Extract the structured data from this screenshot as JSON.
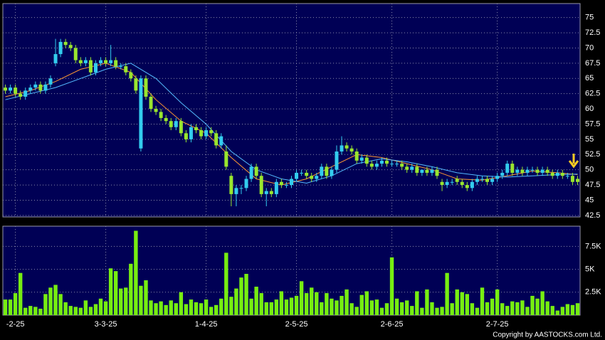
{
  "chart_data": [
    {
      "type": "candlestick",
      "xlim": [
        -0.5,
        114.5
      ],
      "ylim": [
        42.25,
        77.3
      ],
      "yticks": [
        42.5,
        45,
        47.5,
        50,
        52.5,
        55,
        57.5,
        60,
        62.5,
        65,
        67.5,
        70,
        72.5,
        75
      ],
      "grid": true,
      "up_color": "#33ccee",
      "down_color": "#99e62e",
      "open": [
        63.5,
        63,
        63.5,
        62.5,
        62,
        63,
        63.5,
        64,
        63,
        64,
        67.5,
        69,
        71,
        70.5,
        70,
        68,
        67.5,
        68,
        66,
        67.5,
        68,
        67.5,
        68,
        67,
        67,
        66,
        65,
        53.5,
        65,
        62,
        60,
        59.5,
        58.5,
        58,
        57,
        58,
        56,
        55,
        57,
        56.5,
        55.5,
        56.5,
        56,
        54,
        53,
        49,
        46,
        47,
        47,
        48.5,
        50.5,
        49,
        46,
        46.5,
        46,
        48,
        47.5,
        47.5,
        48.5,
        49.5,
        49.5,
        49,
        48.5,
        49,
        50.5,
        49,
        50,
        53,
        54,
        53.5,
        53,
        51.5,
        52,
        51,
        50.5,
        51,
        51.5,
        51,
        51,
        51,
        50.5,
        50,
        50.5,
        49.5,
        50,
        49.5,
        50,
        48,
        47.5,
        48,
        48.5,
        48,
        47.5,
        47,
        48,
        48.5,
        48.5,
        48,
        48.5,
        49,
        49.5,
        51,
        49.5,
        50,
        49.5,
        50,
        50,
        49.5,
        50,
        49.5,
        49,
        49.5,
        49,
        49,
        48.5
      ],
      "high": [
        64,
        64,
        64,
        63,
        63.5,
        64,
        64.5,
        64.5,
        64.5,
        65.5,
        71.5,
        71.5,
        71.5,
        71,
        70.5,
        68.5,
        68.5,
        68.5,
        68,
        68.5,
        68.5,
        70.5,
        68.5,
        67.5,
        67.5,
        66.5,
        65.5,
        65.5,
        65.5,
        62.5,
        60.5,
        60,
        59,
        58.5,
        58.5,
        58.5,
        56.5,
        57.5,
        57.5,
        57,
        57,
        57,
        56.5,
        56,
        54,
        49.5,
        47.5,
        47.5,
        49,
        51,
        51,
        49.5,
        47,
        47,
        48.5,
        48.5,
        48,
        49,
        50,
        50,
        50,
        49.5,
        49.5,
        51,
        51,
        50.5,
        54,
        55.5,
        54.5,
        54,
        53.5,
        52.5,
        52.5,
        51.5,
        51.5,
        52,
        52,
        51.5,
        51.5,
        51.5,
        51,
        51,
        51,
        50,
        50.5,
        50.5,
        50.5,
        48.5,
        48.5,
        48.5,
        49,
        48.5,
        48,
        48.5,
        49,
        49,
        49,
        49,
        49.5,
        50,
        51.5,
        51.5,
        50.5,
        50.5,
        50.5,
        50.5,
        50.5,
        50.5,
        50.5,
        50,
        50,
        50,
        49.5,
        49.5,
        49
      ],
      "low": [
        62.5,
        62.5,
        62,
        61.5,
        61.5,
        62.5,
        63,
        62.5,
        62.5,
        63.5,
        67,
        68.5,
        70,
        69.5,
        67.5,
        67,
        67,
        65.5,
        65.5,
        67,
        67,
        67,
        66.5,
        66.5,
        65.5,
        64.5,
        62.5,
        53,
        61.5,
        59.5,
        59,
        58,
        57.5,
        56.5,
        56.5,
        55.5,
        54.5,
        54.5,
        56,
        55,
        55,
        55.5,
        53.5,
        53.5,
        50,
        44,
        44,
        46,
        46.5,
        48,
        48.5,
        45.5,
        44,
        45.5,
        45.5,
        47,
        47,
        47,
        48,
        49,
        48.5,
        48,
        48,
        48.5,
        48.5,
        48.5,
        49.5,
        52.5,
        53,
        52.5,
        51,
        51,
        50.5,
        50,
        50,
        50.5,
        50.5,
        50.5,
        50.5,
        50,
        49.5,
        49.5,
        49,
        49,
        49,
        49,
        48.5,
        46.5,
        47,
        47.5,
        47.5,
        47,
        46.5,
        46.5,
        47.5,
        48,
        47.5,
        47.5,
        48,
        48.5,
        49,
        49,
        49,
        49,
        49,
        49.5,
        49,
        49,
        49,
        48.5,
        48.5,
        48.5,
        48.5,
        47.5,
        47.5
      ],
      "close": [
        63,
        63.5,
        62.5,
        62,
        63,
        63.5,
        64,
        63,
        64,
        65,
        69,
        71,
        70.5,
        70,
        68,
        67.5,
        68,
        66,
        67.5,
        68,
        67.5,
        68,
        67,
        67,
        66,
        65,
        63,
        65,
        62,
        60,
        59.5,
        58.5,
        58,
        57,
        58,
        56,
        55,
        57,
        56.5,
        55.5,
        56.5,
        56,
        54,
        55.5,
        50.5,
        46,
        47,
        47,
        48.5,
        50.5,
        49,
        46,
        46.5,
        46,
        48,
        47.5,
        47.5,
        48.5,
        49.5,
        49.5,
        49,
        48.5,
        49,
        50.5,
        49,
        50,
        53,
        54,
        53.5,
        53,
        51.5,
        52,
        51,
        50.5,
        51,
        51.5,
        51,
        51,
        51,
        50.5,
        50,
        50.5,
        49.5,
        50,
        49.5,
        50,
        49,
        47.5,
        48,
        48,
        48,
        47.5,
        47,
        48,
        48.5,
        48.5,
        48,
        48.5,
        49,
        49.5,
        51,
        49.5,
        50,
        49.5,
        50,
        50,
        49.5,
        50,
        49.5,
        49,
        49.5,
        49,
        49,
        48,
        48
      ],
      "lines": [
        {
          "color": "#ff9933",
          "x": [
            0,
            5,
            10,
            15,
            20,
            25,
            30,
            35,
            40,
            45,
            50,
            55,
            60,
            65,
            70,
            75,
            80,
            85,
            90,
            95,
            100,
            105,
            110,
            114
          ],
          "values": [
            62,
            63,
            64.5,
            66.5,
            67.5,
            66,
            61.5,
            58,
            56,
            52,
            48.5,
            47.5,
            48.5,
            50.5,
            52.5,
            52,
            51,
            50,
            48.5,
            48.3,
            49,
            49.8,
            49.5,
            49.2
          ]
        },
        {
          "color": "#55bbff",
          "x": [
            0,
            5,
            10,
            15,
            20,
            25,
            30,
            35,
            40,
            45,
            50,
            55,
            60,
            65,
            70,
            75,
            80,
            85,
            90,
            95,
            100,
            105,
            110,
            114
          ],
          "values": [
            61.5,
            62.5,
            63.5,
            65,
            66.5,
            67.5,
            65,
            61,
            57.5,
            53,
            50,
            48.5,
            47.8,
            49,
            51,
            51.8,
            51.3,
            50.5,
            49.5,
            49,
            48.8,
            49,
            49.2,
            49.3
          ]
        }
      ]
    },
    {
      "type": "bar",
      "xlim": [
        -0.5,
        114.5
      ],
      "xticks": [
        {
          "value": 2,
          "label": "-2-25"
        },
        {
          "value": 20,
          "label": "3-3-25"
        },
        {
          "value": 40,
          "label": "1-4-25"
        },
        {
          "value": 58,
          "label": "2-5-25"
        },
        {
          "value": 77,
          "label": "2-6-25"
        },
        {
          "value": 98,
          "label": "2-7-25"
        }
      ],
      "ylim": [
        0,
        9700
      ],
      "yticks": [
        {
          "value": 2500,
          "label": "2.5K"
        },
        {
          "value": 5000,
          "label": "5K"
        },
        {
          "value": 7500,
          "label": "7.5K"
        }
      ],
      "grid": true,
      "color": "#77ee11",
      "values": [
        1700,
        1700,
        2400,
        4600,
        800,
        1000,
        900,
        700,
        2300,
        3000,
        3300,
        2300,
        1400,
        1000,
        900,
        800,
        1600,
        900,
        1200,
        1800,
        1500,
        5100,
        4800,
        2900,
        3000,
        5600,
        9200,
        3200,
        3800,
        1600,
        1300,
        1500,
        1100,
        1600,
        1300,
        2500,
        1200,
        1700,
        1400,
        1300,
        1700,
        900,
        1100,
        1800,
        6800,
        2000,
        2900,
        4100,
        4500,
        1800,
        3100,
        2400,
        1400,
        1400,
        1700,
        2600,
        1700,
        1900,
        2100,
        3700,
        2400,
        3000,
        2500,
        1400,
        2400,
        1800,
        1600,
        2100,
        2800,
        1300,
        900,
        2200,
        2600,
        1600,
        1700,
        800,
        1300,
        6300,
        1800,
        1400,
        1600,
        1000,
        2600,
        800,
        2800,
        1400,
        800,
        900,
        4600,
        1300,
        2800,
        2500,
        2300,
        1300,
        800,
        3000,
        1400,
        1800,
        2800,
        1300,
        1000,
        1500,
        1400,
        1600,
        900,
        2100,
        1800,
        2600,
        1500,
        1000,
        500,
        900,
        1200,
        1100,
        1300
      ]
    }
  ],
  "footer": "Copyright by AASTOCKS.com Ltd."
}
